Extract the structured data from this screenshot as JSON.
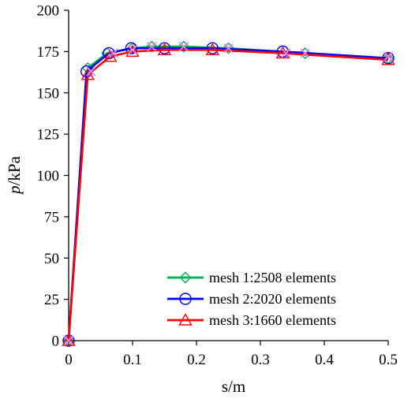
{
  "chart_data": {
    "type": "line",
    "title": "",
    "xlabel": "s/m",
    "ylabel_italic": "p",
    "ylabel_rest": "/kPa",
    "xlim": [
      0,
      0.5
    ],
    "ylim": [
      0,
      200
    ],
    "xticks": [
      "0",
      "0.1",
      "0.2",
      "0.3",
      "0.4",
      "0.5"
    ],
    "yticks": [
      "0",
      "25",
      "50",
      "75",
      "100",
      "125",
      "150",
      "175",
      "200"
    ],
    "grid": false,
    "legend_position": "bottom-right",
    "series": [
      {
        "name": "mesh 1:2508 elements",
        "color": "#00b050",
        "marker": "diamond",
        "x": [
          0,
          0.03,
          0.06,
          0.1,
          0.13,
          0.18,
          0.25,
          0.37,
          0.5
        ],
        "y": [
          0,
          165,
          174,
          177,
          178,
          178,
          177,
          174,
          171
        ]
      },
      {
        "name": "mesh 2:2020 elements",
        "color": "#0000ff",
        "marker": "circle",
        "x": [
          0,
          0.028,
          0.063,
          0.098,
          0.15,
          0.225,
          0.335,
          0.5
        ],
        "y": [
          0,
          163,
          174,
          177,
          177,
          177,
          175,
          171
        ]
      },
      {
        "name": "mesh 3:1660 elements",
        "color": "#ff0000",
        "marker": "triangle",
        "x": [
          0,
          0.03,
          0.065,
          0.1,
          0.15,
          0.225,
          0.335,
          0.5
        ],
        "y": [
          0,
          161,
          172,
          175,
          176,
          176,
          174,
          170
        ]
      },
      {
        "color": "#ee82ee",
        "marker": "x",
        "x": [
          0,
          0.035,
          0.07,
          0.1,
          0.13,
          0.18,
          0.25,
          0.34,
          0.37,
          0.5
        ],
        "y": [
          0,
          163,
          174,
          176,
          178,
          178,
          177,
          174,
          174,
          172
        ]
      }
    ]
  }
}
